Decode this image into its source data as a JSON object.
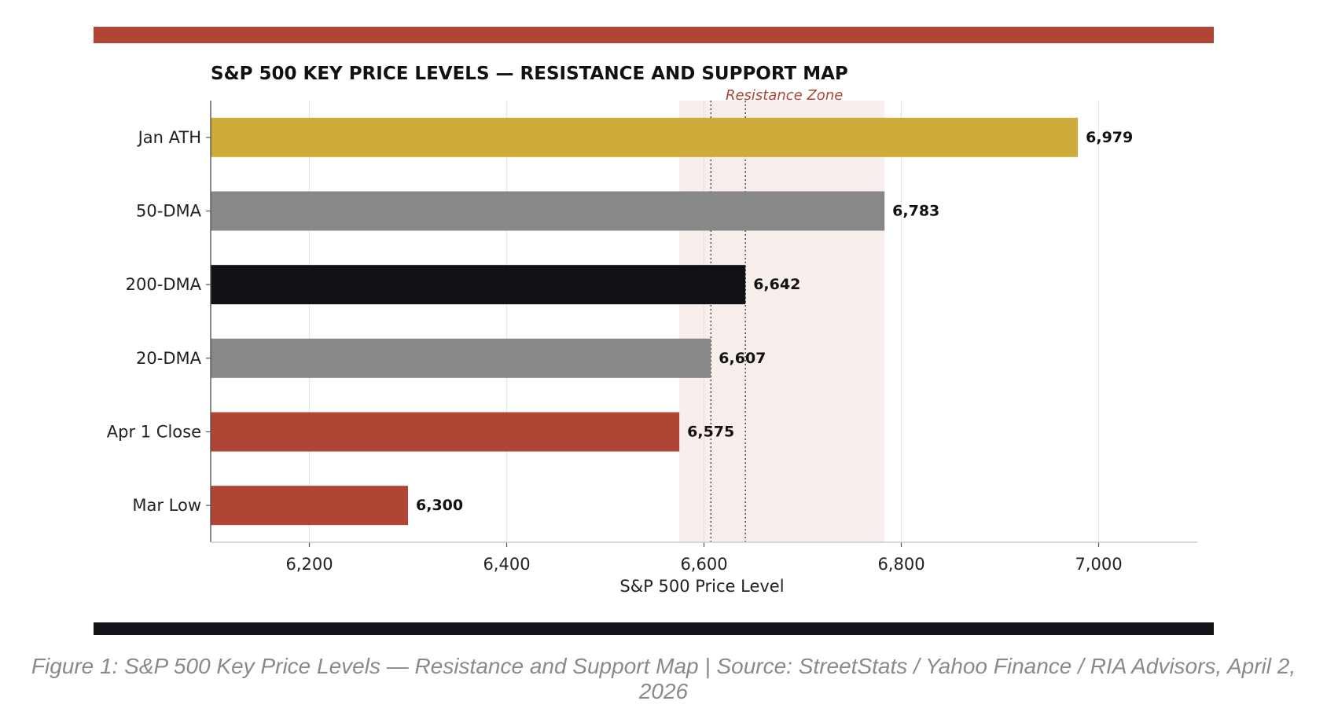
{
  "chart_data": {
    "type": "bar",
    "orientation": "horizontal",
    "title": "S&P 500 KEY PRICE LEVELS — RESISTANCE AND SUPPORT MAP",
    "xlabel": "S&P 500 Price Level",
    "ylabel": "",
    "xlim": [
      6100,
      7100
    ],
    "xticks": [
      6200,
      6400,
      6600,
      6800,
      7000
    ],
    "xtick_labels": [
      "6,200",
      "6,400",
      "6,600",
      "6,800",
      "7,000"
    ],
    "grid": "vertical",
    "categories": [
      "Jan ATH",
      "50-DMA",
      "200-DMA",
      "20-DMA",
      "Apr 1 Close",
      "Mar Low"
    ],
    "values": [
      6979,
      6783,
      6642,
      6607,
      6575,
      6300
    ],
    "value_labels": [
      "6,979",
      "6,783",
      "6,642",
      "6,607",
      "6,575",
      "6,300"
    ],
    "colors": [
      "#cdac3b",
      "#888888",
      "#0f1117",
      "#888888",
      "#b04535",
      "#b04535"
    ],
    "resistance_zone": {
      "label": "Resistance Zone",
      "start": 6575,
      "end": 6783,
      "fill_color": "#f8eeec",
      "label_color": "#b04535"
    },
    "reference_lines": [
      {
        "value": 6607,
        "style": "dotted"
      },
      {
        "value": 6642,
        "style": "dotted"
      }
    ]
  },
  "caption": "Figure 1: S&P 500 Key Price Levels — Resistance and Support Map | Source: StreetStats / Yahoo Finance / RIA Advisors, April 2, 2026",
  "colors": {
    "top_band": "#b04535",
    "bottom_band": "#111318"
  }
}
